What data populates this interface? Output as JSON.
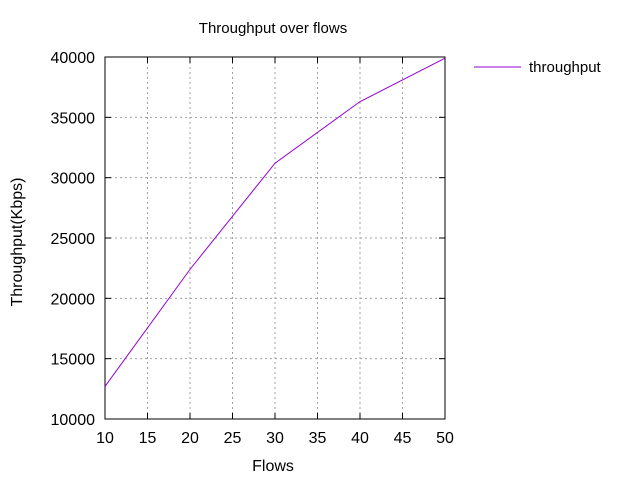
{
  "chart_data": {
    "type": "line",
    "title": "Throughput over flows",
    "xlabel": "Flows",
    "ylabel": "Throughput(Kbps)",
    "x": [
      10,
      20,
      30,
      40,
      50
    ],
    "series": [
      {
        "name": "throughput",
        "values": [
          12700,
          22400,
          31200,
          36300,
          39900
        ],
        "color": "#9400d3"
      }
    ],
    "xlim": [
      10,
      50
    ],
    "ylim": [
      10000,
      40000
    ],
    "xticks": [
      10,
      15,
      20,
      25,
      30,
      35,
      40,
      45,
      50
    ],
    "yticks": [
      10000,
      15000,
      20000,
      25000,
      30000,
      35000,
      40000
    ],
    "grid": true,
    "legend_position": "outside-top-right"
  }
}
